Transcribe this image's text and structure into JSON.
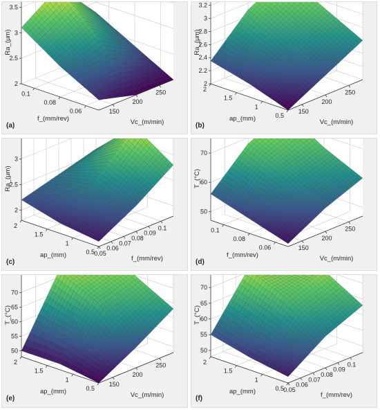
{
  "colormap": [
    "#440154",
    "#3b528b",
    "#21918c",
    "#5ec962",
    "#fde725"
  ],
  "chart_data": [
    {
      "panel_label": "(a)",
      "type": "surface",
      "xlabel": "f_(mm/rev)",
      "ylabel": "Vc_(m/min)",
      "zlabel": "Ra_(μm)",
      "x_ticks": [
        "0.06",
        "0.08",
        "0.1"
      ],
      "x_tick_values": [
        0.06,
        0.08,
        0.1
      ],
      "xlim": [
        0.05,
        0.11
      ],
      "y_ticks": [
        "150",
        "200",
        "250"
      ],
      "y_tick_values": [
        150,
        200,
        250
      ],
      "ylim": [
        120,
        280
      ],
      "z_ticks": [
        "2",
        "2.5",
        "3",
        "3.5"
      ],
      "z_tick_values": [
        2,
        2.5,
        3,
        3.5
      ],
      "zlim": [
        2,
        3.6
      ],
      "x": [
        0.05,
        0.08,
        0.11
      ],
      "y": [
        120,
        200,
        280
      ],
      "z": [
        [
          2.2,
          2.0,
          2.0
        ],
        [
          2.6,
          2.9,
          2.4
        ],
        [
          3.1,
          3.6,
          2.8
        ]
      ]
    },
    {
      "panel_label": "(b)",
      "type": "surface",
      "xlabel": "ap_(mm)",
      "ylabel": "Vc_(m/min)",
      "zlabel": "Ra_(μm)",
      "x_ticks": [
        "0.5",
        "1",
        "1.5",
        "2"
      ],
      "x_tick_values": [
        0.5,
        1,
        1.5,
        2
      ],
      "xlim": [
        0.5,
        2
      ],
      "y_ticks": [
        "150",
        "200",
        "250"
      ],
      "y_tick_values": [
        150,
        200,
        250
      ],
      "ylim": [
        120,
        280
      ],
      "z_ticks": [
        "2",
        "2.2",
        "2.4",
        "2.6",
        "2.8",
        "3",
        "3.2"
      ],
      "z_tick_values": [
        2,
        2.2,
        2.4,
        2.6,
        2.8,
        3,
        3.2
      ],
      "zlim": [
        2,
        3.25
      ],
      "x": [
        0.5,
        1.25,
        2.0
      ],
      "y": [
        120,
        200,
        280
      ],
      "z": [
        [
          2.0,
          2.3,
          2.6
        ],
        [
          2.2,
          2.6,
          2.9
        ],
        [
          2.35,
          2.9,
          3.2
        ]
      ]
    },
    {
      "panel_label": "(c)",
      "type": "surface",
      "xlabel": "ap_(mm)",
      "ylabel": "f_(mm/rev)",
      "zlabel": "Ra_(μm)",
      "x_ticks": [
        "0.5",
        "1",
        "1.5",
        "2"
      ],
      "x_tick_values": [
        0.5,
        1,
        1.5,
        2
      ],
      "xlim": [
        0.5,
        2
      ],
      "y_ticks": [
        "0.05",
        "0.06",
        "0.07",
        "0.08",
        "0.09",
        "0.1"
      ],
      "y_tick_values": [
        0.05,
        0.06,
        0.07,
        0.08,
        0.09,
        0.1
      ],
      "ylim": [
        0.05,
        0.11
      ],
      "z_ticks": [
        "2",
        "2.5",
        "3"
      ],
      "z_tick_values": [
        2,
        2.5,
        3
      ],
      "zlim": [
        1.8,
        3.4
      ],
      "x": [
        0.5,
        1.25,
        2.0
      ],
      "y": [
        0.05,
        0.08,
        0.11
      ],
      "z": [
        [
          1.9,
          2.3,
          2.8
        ],
        [
          2.0,
          2.6,
          3.3
        ],
        [
          2.2,
          2.4,
          2.6
        ]
      ]
    },
    {
      "panel_label": "(d)",
      "type": "surface",
      "xlabel": "f_(mm/rev)",
      "ylabel": "Vc_(m/min)",
      "zlabel": "T_(°C)",
      "x_ticks": [
        "0.06",
        "0.08",
        "0.1"
      ],
      "x_tick_values": [
        0.06,
        0.08,
        0.1
      ],
      "xlim": [
        0.05,
        0.11
      ],
      "y_ticks": [
        "150",
        "200",
        "250"
      ],
      "y_tick_values": [
        150,
        200,
        250
      ],
      "ylim": [
        120,
        280
      ],
      "z_ticks": [
        "50",
        "60",
        "70"
      ],
      "z_tick_values": [
        50,
        60,
        70
      ],
      "zlim": [
        47,
        75
      ],
      "x": [
        0.05,
        0.08,
        0.11
      ],
      "y": [
        120,
        200,
        280
      ],
      "z": [
        [
          48,
          55,
          60
        ],
        [
          52,
          62,
          66
        ],
        [
          56,
          68,
          74
        ]
      ]
    },
    {
      "panel_label": "(e)",
      "type": "surface",
      "xlabel": "ap_(mm)",
      "ylabel": "Vc_(m/min)",
      "zlabel": "T_(°C)",
      "x_ticks": [
        "0.5",
        "1",
        "1.5",
        "2"
      ],
      "x_tick_values": [
        0.5,
        1,
        1.5,
        2
      ],
      "xlim": [
        0.5,
        2
      ],
      "y_ticks": [
        "150",
        "200",
        "250"
      ],
      "y_tick_values": [
        150,
        200,
        250
      ],
      "ylim": [
        120,
        280
      ],
      "z_ticks": [
        "50",
        "55",
        "60",
        "65",
        "70"
      ],
      "z_tick_values": [
        50,
        55,
        60,
        65,
        70
      ],
      "zlim": [
        48,
        76
      ],
      "x": [
        0.5,
        1.25,
        2.0
      ],
      "y": [
        120,
        200,
        280
      ],
      "z": [
        [
          48,
          55,
          63
        ],
        [
          50,
          66,
          70
        ],
        [
          50,
          72,
          75
        ]
      ]
    },
    {
      "panel_label": "(f)",
      "type": "surface",
      "xlabel": "ap_(mm)",
      "ylabel": "f_(mm/rev)",
      "zlabel": "T_(°C)",
      "x_ticks": [
        "0.5",
        "1",
        "1.5",
        "2"
      ],
      "x_tick_values": [
        0.5,
        1,
        1.5,
        2
      ],
      "xlim": [
        0.5,
        2
      ],
      "y_ticks": [
        "0.05",
        "0.06",
        "0.07",
        "0.08",
        "0.09",
        "0.1"
      ],
      "y_tick_values": [
        0.05,
        0.06,
        0.07,
        0.08,
        0.09,
        0.1
      ],
      "ylim": [
        0.05,
        0.11
      ],
      "z_ticks": [
        "50",
        "55",
        "60",
        "65",
        "70"
      ],
      "z_tick_values": [
        50,
        55,
        60,
        65,
        70
      ],
      "zlim": [
        48,
        74
      ],
      "x": [
        0.5,
        1.25,
        2.0
      ],
      "y": [
        0.05,
        0.08,
        0.11
      ],
      "z": [
        [
          50,
          58,
          63
        ],
        [
          52,
          66,
          70
        ],
        [
          55,
          71,
          68
        ]
      ]
    }
  ]
}
